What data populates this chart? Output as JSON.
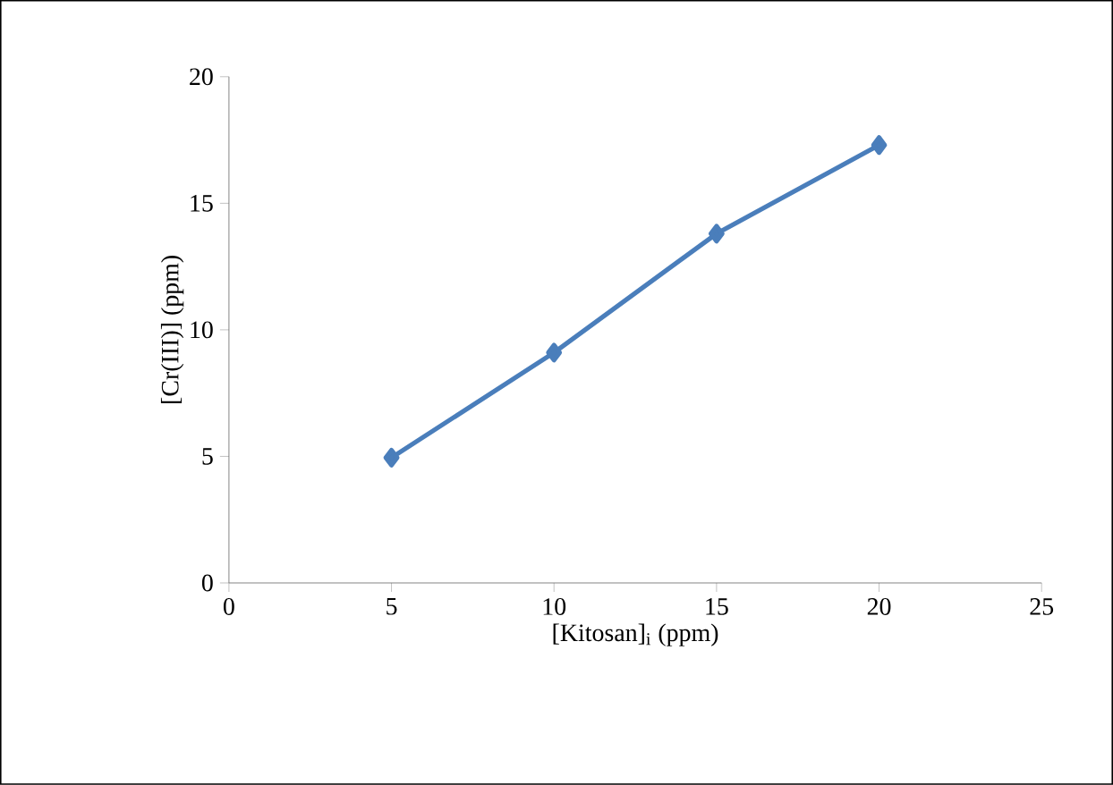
{
  "chart_data": {
    "type": "line",
    "xlabel": "[Kitosan]$_{i}$ (ppm)",
    "ylabel": "[Cr(III)]  (ppm)",
    "x": [
      5,
      10,
      15,
      20
    ],
    "series": [
      {
        "color": "#4a7ebb",
        "values": [
          4.95,
          9.1,
          13.8,
          17.3
        ]
      }
    ],
    "xlim": [
      0,
      25
    ],
    "xticks": [
      0,
      5,
      10,
      15,
      20,
      25
    ],
    "ylim": [
      0,
      20
    ],
    "yticks": [
      0,
      5,
      10,
      15,
      20
    ],
    "grid": false,
    "marker": "diamond",
    "line_style": "solid"
  }
}
